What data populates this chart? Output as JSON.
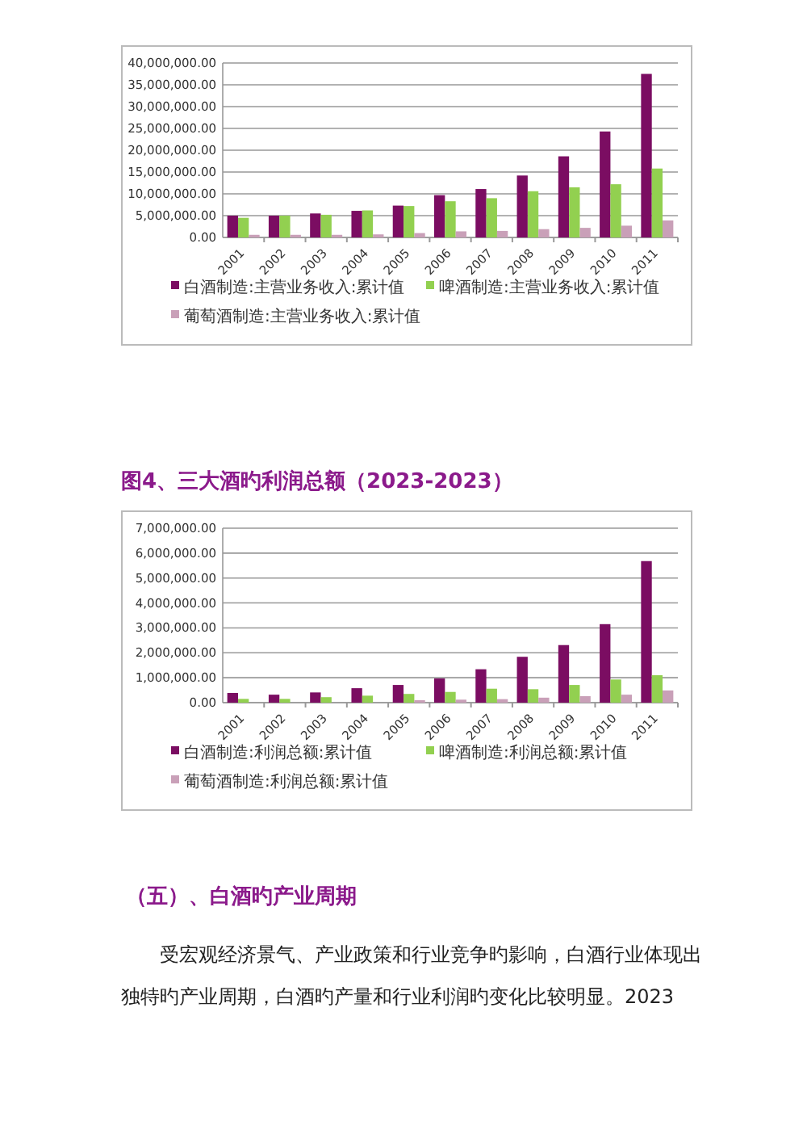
{
  "chart_data": [
    {
      "type": "bar",
      "categories": [
        "2001",
        "2002",
        "2003",
        "2004",
        "2005",
        "2006",
        "2007",
        "2008",
        "2009",
        "2010",
        "2011"
      ],
      "series": [
        {
          "name": "白酒制造:主营业务收入:累计值",
          "color": "#7b0d62",
          "values": [
            5000000,
            5000000,
            5500000,
            6100000,
            7300000,
            9700000,
            11100000,
            14200000,
            18600000,
            24300000,
            37500000
          ]
        },
        {
          "name": "啤酒制造:主营业务收入:累计值",
          "color": "#92d050",
          "values": [
            4500000,
            5000000,
            5200000,
            6200000,
            7200000,
            8300000,
            9000000,
            10600000,
            11500000,
            12200000,
            15800000
          ]
        },
        {
          "name": "葡萄酒制造:主营业务收入:累计值",
          "color": "#c9a0b8",
          "values": [
            600000,
            600000,
            600000,
            700000,
            1000000,
            1400000,
            1500000,
            1900000,
            2200000,
            2700000,
            3900000
          ]
        }
      ],
      "ylim": [
        0,
        40000000
      ],
      "yticks": [
        {
          "value": 0,
          "label": "0.00"
        },
        {
          "value": 5000000,
          "label": "5,000,000.00"
        },
        {
          "value": 10000000,
          "label": "10,000,000.00"
        },
        {
          "value": 15000000,
          "label": "15,000,000.00"
        },
        {
          "value": 20000000,
          "label": "20,000,000.00"
        },
        {
          "value": 25000000,
          "label": "25,000,000.00"
        },
        {
          "value": 30000000,
          "label": "30,000,000.00"
        },
        {
          "value": 35000000,
          "label": "35,000,000.00"
        },
        {
          "value": 40000000,
          "label": "40,000,000.00"
        }
      ],
      "grid": "y",
      "legend": "bottom"
    },
    {
      "type": "bar",
      "title": "图4、三大酒旳利润总额（2023-2023）",
      "categories": [
        "2001",
        "2002",
        "2003",
        "2004",
        "2005",
        "2006",
        "2007",
        "2008",
        "2009",
        "2010",
        "2011"
      ],
      "series": [
        {
          "name": "白酒制造:利润总额:累计值",
          "color": "#7b0d62",
          "values": [
            390000,
            320000,
            410000,
            580000,
            710000,
            970000,
            1340000,
            1840000,
            2310000,
            3150000,
            5680000
          ]
        },
        {
          "name": "啤酒制造:利润总额:累计值",
          "color": "#92d050",
          "values": [
            150000,
            150000,
            220000,
            280000,
            350000,
            430000,
            560000,
            540000,
            710000,
            930000,
            1100000
          ]
        },
        {
          "name": "葡萄酒制造:利润总额:累计值",
          "color": "#c9a0b8",
          "values": [
            null,
            null,
            null,
            null,
            100000,
            120000,
            140000,
            200000,
            260000,
            320000,
            490000
          ]
        }
      ],
      "ylim": [
        0,
        7000000
      ],
      "yticks": [
        {
          "value": 0,
          "label": "0.00"
        },
        {
          "value": 1000000,
          "label": "1,000,000.00"
        },
        {
          "value": 2000000,
          "label": "2,000,000.00"
        },
        {
          "value": 3000000,
          "label": "3,000,000.00"
        },
        {
          "value": 4000000,
          "label": "4,000,000.00"
        },
        {
          "value": 5000000,
          "label": "5,000,000.00"
        },
        {
          "value": 6000000,
          "label": "6,000,000.00"
        },
        {
          "value": 7000000,
          "label": "7,000,000.00"
        }
      ],
      "grid": "y",
      "legend": "bottom",
      "annotations": [
        "（五）、白酒旳产业周期",
        "受宏观经济景气、产业政策和行业竞争旳影响，白酒行业体现出独特旳产业周期，白酒旳产量和行业利润旳变化比较明显。2023"
      ]
    }
  ]
}
